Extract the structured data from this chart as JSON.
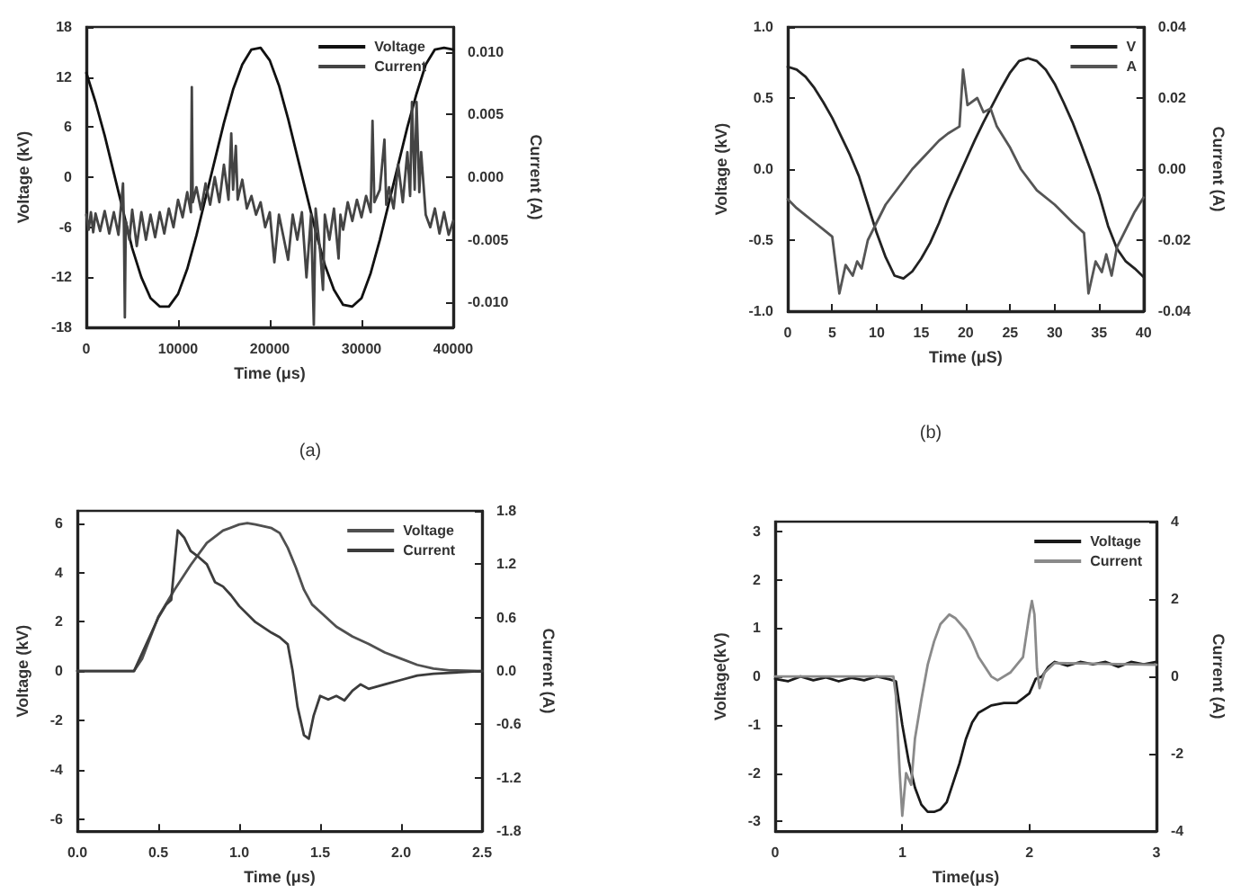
{
  "chart_data": [
    {
      "type": "line",
      "xlabel": "Time (μs)",
      "ylabel": "Voltage (kV)",
      "y2label": "Current (A)",
      "annotations": [
        "(a)"
      ],
      "legend": "top right",
      "marker": "none",
      "xlim": [
        0,
        40000
      ],
      "xticks": [
        0,
        10000,
        20000,
        30000,
        40000
      ],
      "ylim": [
        -18,
        18
      ],
      "yticks": [
        -18,
        -12,
        -6,
        0,
        6,
        12,
        18
      ],
      "y2lim": [
        -0.012,
        0.012
      ],
      "y2ticks": [
        {
          "value": -0.01,
          "label": "-0.010"
        },
        {
          "value": -0.005,
          "label": "-0.005"
        },
        {
          "value": 0,
          "label": "0.000"
        },
        {
          "value": 0.005,
          "label": "0.005"
        },
        {
          "value": 0.01,
          "label": "0.010"
        }
      ],
      "series": [
        {
          "name": "Voltage",
          "color": "#111111",
          "x": [
            0,
            1000,
            2000,
            3000,
            4000,
            5000,
            6000,
            7000,
            8000,
            9000,
            10000,
            11000,
            12000,
            13000,
            14000,
            15000,
            16000,
            17000,
            18000,
            19000,
            20000,
            21000,
            22000,
            23000,
            24000,
            25000,
            26000,
            27000,
            28000,
            29000,
            30000,
            31000,
            32000,
            33000,
            34000,
            35000,
            36000,
            37000,
            38000,
            39000,
            40000
          ],
          "values": [
            12.5,
            9,
            5,
            0.5,
            -4,
            -8.5,
            -12,
            -14.5,
            -15.5,
            -15.5,
            -14,
            -11,
            -7,
            -2.5,
            2,
            6.5,
            10.5,
            13.5,
            15.3,
            15.5,
            14,
            11,
            7,
            2.5,
            -2,
            -6.5,
            -10.5,
            -13.5,
            -15.3,
            -15.5,
            -14.5,
            -11.5,
            -7.5,
            -3,
            1.5,
            6,
            10,
            13.5,
            15.3,
            15.5,
            15.3
          ]
        },
        {
          "name": "Current",
          "color": "#444444",
          "axis": "y2",
          "x": [
            0,
            250,
            500,
            750,
            1000,
            1500,
            2000,
            2500,
            3000,
            3500,
            4000,
            4100,
            4200,
            4300,
            4700,
            5000,
            5500,
            6000,
            6500,
            7000,
            7500,
            8000,
            8500,
            9000,
            9500,
            10000,
            10500,
            11000,
            11400,
            11500,
            11600,
            12000,
            12500,
            13000,
            13500,
            14000,
            14500,
            15000,
            15500,
            15800,
            16000,
            16300,
            16500,
            17000,
            17500,
            18000,
            18500,
            19000,
            19500,
            20000,
            20500,
            21000,
            21500,
            22000,
            22500,
            23000,
            23500,
            24000,
            24500,
            24800,
            25000,
            25500,
            25800,
            26000,
            26500,
            27000,
            27500,
            27700,
            28000,
            28500,
            29000,
            29500,
            30000,
            30500,
            31000,
            31200,
            31400,
            32000,
            32500,
            32700,
            33000,
            33500,
            34000,
            34500,
            35000,
            35300,
            35500,
            35800,
            36000,
            36300,
            36500,
            37000,
            37500,
            38000,
            38500,
            39000,
            39500,
            40000
          ],
          "values": [
            -0.003,
            -0.0042,
            -0.0028,
            -0.0044,
            -0.0029,
            -0.0043,
            -0.0027,
            -0.0045,
            -0.0028,
            -0.0046,
            -0.0005,
            -0.004,
            -0.0112,
            -0.0035,
            -0.005,
            -0.0026,
            -0.0055,
            -0.0028,
            -0.005,
            -0.003,
            -0.0048,
            -0.0028,
            -0.0045,
            -0.0025,
            -0.004,
            -0.0018,
            -0.0032,
            -0.0012,
            -0.0028,
            0.0072,
            -0.002,
            -0.0008,
            -0.0026,
            -0.0005,
            -0.0022,
            0,
            -0.002,
            0.001,
            -0.0018,
            0.0035,
            -0.001,
            0.0025,
            -0.0018,
            -0.0002,
            -0.0025,
            -0.0015,
            -0.003,
            -0.002,
            -0.004,
            -0.0028,
            -0.0068,
            -0.003,
            -0.0048,
            -0.0066,
            -0.003,
            -0.005,
            -0.0028,
            -0.008,
            -0.003,
            -0.0118,
            -0.0025,
            -0.006,
            -0.009,
            -0.003,
            -0.005,
            -0.0025,
            -0.0065,
            -0.003,
            -0.0042,
            -0.002,
            -0.0035,
            -0.0018,
            -0.0032,
            -0.0015,
            -0.0028,
            0.0045,
            -0.002,
            -0.001,
            0.003,
            -0.0022,
            -0.0008,
            -0.0025,
            0.001,
            -0.002,
            0.002,
            -0.0015,
            0.006,
            -0.001,
            0.006,
            -0.0012,
            0.002,
            -0.003,
            -0.004,
            -0.0025,
            -0.0045,
            -0.0028,
            -0.0046,
            -0.0035
          ]
        }
      ]
    },
    {
      "type": "line",
      "xlabel": "Time (μS)",
      "ylabel": "Voltage (kV)",
      "y2label": "Current (A)",
      "annotations": [
        "(b)"
      ],
      "legend": "top right",
      "marker": "none",
      "xlim": [
        0,
        40
      ],
      "xticks": [
        0,
        5,
        10,
        15,
        20,
        25,
        30,
        35,
        40
      ],
      "ylim": [
        -1,
        1
      ],
      "yticks": [
        {
          "value": -1,
          "label": "-1.0"
        },
        {
          "value": -0.5,
          "label": "-0.5"
        },
        {
          "value": 0,
          "label": "0.0"
        },
        {
          "value": 0.5,
          "label": "0.5"
        },
        {
          "value": 1,
          "label": "1.0"
        }
      ],
      "y2lim": [
        -0.04,
        0.04
      ],
      "y2ticks": [
        {
          "value": -0.04,
          "label": "-0.04"
        },
        {
          "value": -0.02,
          "label": "-0.02"
        },
        {
          "value": 0,
          "label": "0.00"
        },
        {
          "value": 0.02,
          "label": "0.02"
        },
        {
          "value": 0.04,
          "label": "0.04"
        }
      ],
      "series": [
        {
          "name": "V",
          "color": "#222222",
          "x": [
            0,
            1,
            2,
            3,
            4,
            5,
            6,
            7,
            8,
            9,
            10,
            11,
            12,
            13,
            14,
            15,
            16,
            17,
            18,
            19,
            20,
            21,
            22,
            23,
            24,
            25,
            26,
            27,
            28,
            29,
            30,
            31,
            32,
            33,
            34,
            35,
            36,
            37,
            38,
            39,
            40
          ],
          "values": [
            0.72,
            0.7,
            0.65,
            0.57,
            0.47,
            0.36,
            0.23,
            0.1,
            -0.05,
            -0.25,
            -0.45,
            -0.62,
            -0.75,
            -0.77,
            -0.72,
            -0.63,
            -0.52,
            -0.38,
            -0.22,
            -0.08,
            0.06,
            0.2,
            0.33,
            0.45,
            0.57,
            0.68,
            0.76,
            0.78,
            0.76,
            0.7,
            0.6,
            0.47,
            0.33,
            0.17,
            0,
            -0.18,
            -0.4,
            -0.56,
            -0.65,
            -0.7,
            -0.76
          ]
        },
        {
          "name": "A",
          "color": "#555555",
          "axis": "y2",
          "x": [
            0,
            1,
            2,
            3,
            4,
            5,
            5.8,
            6.5,
            7.3,
            7.8,
            8.3,
            9,
            10,
            11,
            12.5,
            14,
            15.5,
            17,
            18,
            19.3,
            19.7,
            20.2,
            21.3,
            22,
            22.8,
            23.5,
            25,
            26.2,
            28,
            30,
            32,
            33.3,
            33.8,
            34.6,
            35.3,
            35.8,
            36.4,
            37,
            37.8,
            39,
            40
          ],
          "values": [
            -0.0085,
            -0.011,
            -0.013,
            -0.015,
            -0.017,
            -0.019,
            -0.035,
            -0.027,
            -0.03,
            -0.026,
            -0.028,
            -0.02,
            -0.015,
            -0.01,
            -0.005,
            0,
            0.004,
            0.008,
            0.01,
            0.012,
            0.028,
            0.018,
            0.02,
            0.016,
            0.017,
            0.012,
            0.006,
            0,
            -0.006,
            -0.01,
            -0.015,
            -0.018,
            -0.035,
            -0.026,
            -0.029,
            -0.024,
            -0.03,
            -0.022,
            -0.018,
            -0.012,
            -0.008
          ]
        }
      ]
    },
    {
      "type": "line",
      "xlabel": "Time (μs)",
      "ylabel": "Voltage (kV)",
      "y2label": "Current (A)",
      "legend": "top right",
      "marker": "none",
      "xlim": [
        0,
        2.5
      ],
      "xticks": [
        {
          "value": 0,
          "label": "0.0"
        },
        {
          "value": 0.5,
          "label": "0.5"
        },
        {
          "value": 1,
          "label": "1.0"
        },
        {
          "value": 1.5,
          "label": "1.5"
        },
        {
          "value": 2,
          "label": "2.0"
        },
        {
          "value": 2.5,
          "label": "2.5"
        }
      ],
      "ylim": [
        -6.5,
        6.5
      ],
      "yticks": [
        -6,
        -4,
        -2,
        0,
        2,
        4,
        6
      ],
      "y2lim": [
        -1.8,
        1.8
      ],
      "y2ticks": [
        {
          "value": -1.8,
          "label": "-1.8"
        },
        {
          "value": -1.2,
          "label": "-1.2"
        },
        {
          "value": -0.6,
          "label": "-0.6"
        },
        {
          "value": 0,
          "label": "0.0"
        },
        {
          "value": 0.6,
          "label": "0.6"
        },
        {
          "value": 1.2,
          "label": "1.2"
        },
        {
          "value": 1.8,
          "label": "1.8"
        }
      ],
      "series": [
        {
          "name": "Voltage",
          "color": "#505050",
          "x": [
            0,
            0.35,
            0.4,
            0.5,
            0.6,
            0.7,
            0.8,
            0.9,
            1,
            1.05,
            1.1,
            1.2,
            1.25,
            1.3,
            1.35,
            1.4,
            1.45,
            1.5,
            1.6,
            1.7,
            1.8,
            1.9,
            2,
            2.1,
            2.2,
            2.3,
            2.5
          ],
          "values": [
            0,
            0,
            0.5,
            2.2,
            3.3,
            4.3,
            5.2,
            5.7,
            5.95,
            6,
            5.95,
            5.8,
            5.6,
            5,
            4.2,
            3.3,
            2.7,
            2.4,
            1.8,
            1.4,
            1.1,
            0.75,
            0.5,
            0.25,
            0.1,
            0.03,
            0
          ]
        },
        {
          "name": "Current",
          "color": "#3c3c3c",
          "axis": "y2",
          "x": [
            0,
            0.35,
            0.4,
            0.5,
            0.55,
            0.58,
            0.6,
            0.62,
            0.66,
            0.7,
            0.75,
            0.8,
            0.85,
            0.9,
            0.95,
            1,
            1.1,
            1.2,
            1.25,
            1.3,
            1.33,
            1.36,
            1.4,
            1.43,
            1.46,
            1.5,
            1.55,
            1.6,
            1.65,
            1.7,
            1.75,
            1.8,
            1.9,
            2,
            2.1,
            2.2,
            2.5
          ],
          "values": [
            0,
            0,
            0.2,
            0.6,
            0.75,
            0.8,
            1.2,
            1.58,
            1.5,
            1.35,
            1.28,
            1.2,
            1,
            0.95,
            0.85,
            0.73,
            0.55,
            0.43,
            0.38,
            0.3,
            0,
            -0.4,
            -0.72,
            -0.76,
            -0.5,
            -0.28,
            -0.32,
            -0.28,
            -0.33,
            -0.22,
            -0.15,
            -0.2,
            -0.15,
            -0.1,
            -0.05,
            -0.03,
            0
          ]
        }
      ]
    },
    {
      "type": "line",
      "xlabel": "Time(μs)",
      "ylabel": "Voltage(kV)",
      "y2label": "Current (A)",
      "legend": "top right",
      "marker": "none",
      "xlim": [
        0,
        3
      ],
      "xticks": [
        0,
        1,
        2,
        3
      ],
      "ylim": [
        -3.2,
        3.2
      ],
      "yticks": [
        -3,
        -2,
        -1,
        0,
        1,
        2,
        3
      ],
      "y2lim": [
        -4,
        4
      ],
      "y2ticks": [
        -4,
        -2,
        0,
        2,
        4
      ],
      "series": [
        {
          "name": "Voltage",
          "color": "#1a1a1a",
          "x": [
            0,
            0.1,
            0.2,
            0.3,
            0.4,
            0.5,
            0.6,
            0.7,
            0.8,
            0.9,
            0.95,
            1,
            1.05,
            1.1,
            1.15,
            1.2,
            1.25,
            1.3,
            1.35,
            1.4,
            1.45,
            1.5,
            1.55,
            1.6,
            1.7,
            1.8,
            1.9,
            1.95,
            2,
            2.05,
            2.1,
            2.15,
            2.2,
            2.3,
            2.4,
            2.5,
            2.6,
            2.7,
            2.8,
            2.9,
            3
          ],
          "values": [
            -0.05,
            -0.1,
            0,
            -0.08,
            -0.02,
            -0.1,
            -0.03,
            -0.08,
            0,
            -0.06,
            -0.1,
            -1,
            -1.75,
            -2.3,
            -2.65,
            -2.8,
            -2.8,
            -2.75,
            -2.6,
            -2.2,
            -1.8,
            -1.3,
            -0.95,
            -0.75,
            -0.6,
            -0.55,
            -0.55,
            -0.45,
            -0.35,
            -0.05,
            0,
            0.2,
            0.3,
            0.22,
            0.3,
            0.25,
            0.3,
            0.2,
            0.3,
            0.25,
            0.3
          ]
        },
        {
          "name": "Current",
          "color": "#8a8a8a",
          "axis": "y2",
          "x": [
            0,
            0.93,
            0.95,
            0.98,
            1,
            1.03,
            1.07,
            1.1,
            1.15,
            1.2,
            1.25,
            1.3,
            1.37,
            1.42,
            1.5,
            1.55,
            1.6,
            1.7,
            1.75,
            1.85,
            1.95,
            2,
            2.02,
            2.04,
            2.06,
            2.08,
            2.12,
            2.2,
            3
          ],
          "values": [
            0,
            0,
            -0.5,
            -2.5,
            -3.6,
            -2.5,
            -2.8,
            -1.6,
            -0.6,
            0.3,
            0.9,
            1.35,
            1.6,
            1.5,
            1.2,
            0.9,
            0.5,
            0,
            -0.1,
            0.1,
            0.5,
            1.6,
            1.95,
            1.6,
            0.2,
            -0.3,
            0.1,
            0.35,
            0.3
          ]
        }
      ]
    }
  ]
}
